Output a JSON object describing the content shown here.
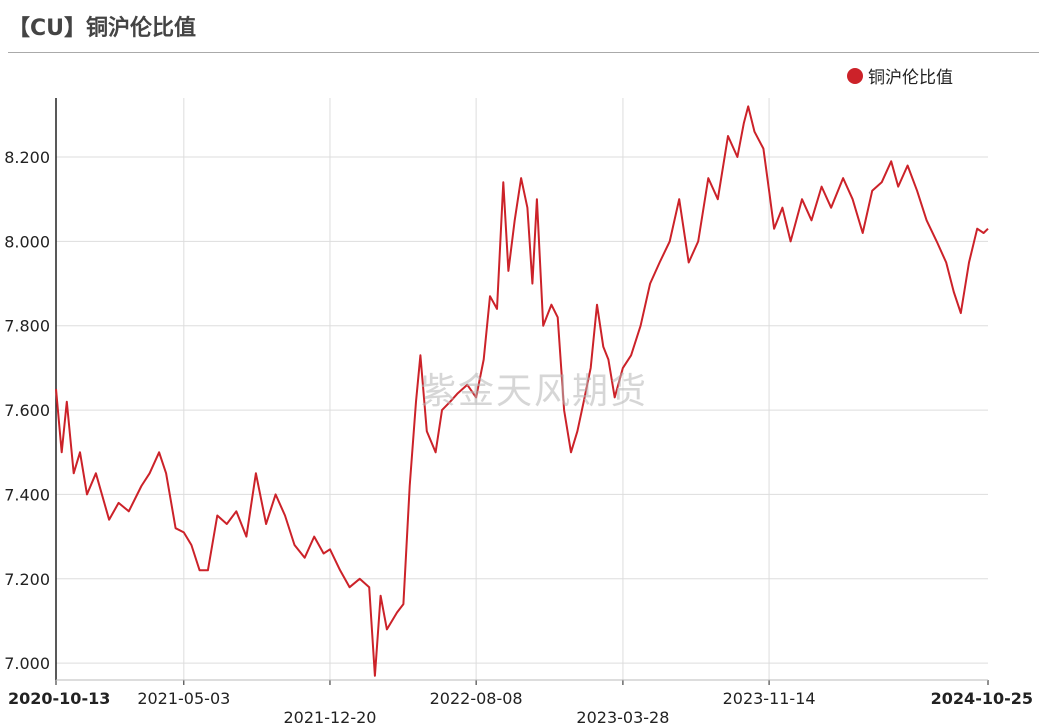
{
  "header": {
    "title": "【CU】铜沪伦比值"
  },
  "watermark": "紫金天风期货",
  "colors": {
    "series": "#cc2229",
    "grid": "#dddddd",
    "axis": "#222222"
  },
  "chart_data": {
    "type": "line",
    "title": "【CU】铜沪伦比值",
    "legend_position": "top-right",
    "grid": true,
    "ylim": [
      6.96,
      8.34
    ],
    "xlim": [
      "2020-10-13",
      "2024-10-25"
    ],
    "yticks": [
      "7.000",
      "7.200",
      "7.400",
      "7.600",
      "7.800",
      "8.000",
      "8.200"
    ],
    "ytick_values": [
      7.0,
      7.2,
      7.4,
      7.6,
      7.8,
      8.0,
      8.2
    ],
    "xticks": [
      {
        "label": "2020-10-13",
        "bold": true,
        "row": 0
      },
      {
        "label": "2021-05-03",
        "bold": false,
        "row": 0
      },
      {
        "label": "2021-12-20",
        "bold": false,
        "row": 1
      },
      {
        "label": "2022-08-08",
        "bold": false,
        "row": 0
      },
      {
        "label": "2023-03-28",
        "bold": false,
        "row": 1
      },
      {
        "label": "2023-11-14",
        "bold": false,
        "row": 0
      },
      {
        "label": "2024-10-25",
        "bold": true,
        "row": 0
      }
    ],
    "series": [
      {
        "name": "铜沪伦比值",
        "points": [
          [
            "2020-10-13",
            7.65
          ],
          [
            "2020-10-22",
            7.5
          ],
          [
            "2020-10-30",
            7.62
          ],
          [
            "2020-11-10",
            7.45
          ],
          [
            "2020-11-20",
            7.5
          ],
          [
            "2020-12-01",
            7.4
          ],
          [
            "2020-12-15",
            7.45
          ],
          [
            "2021-01-05",
            7.34
          ],
          [
            "2021-01-20",
            7.38
          ],
          [
            "2021-02-05",
            7.36
          ],
          [
            "2021-02-25",
            7.42
          ],
          [
            "2021-03-10",
            7.45
          ],
          [
            "2021-03-25",
            7.5
          ],
          [
            "2021-04-05",
            7.45
          ],
          [
            "2021-04-20",
            7.32
          ],
          [
            "2021-05-03",
            7.31
          ],
          [
            "2021-05-15",
            7.28
          ],
          [
            "2021-05-28",
            7.22
          ],
          [
            "2021-06-10",
            7.22
          ],
          [
            "2021-06-25",
            7.35
          ],
          [
            "2021-07-10",
            7.33
          ],
          [
            "2021-07-25",
            7.36
          ],
          [
            "2021-08-10",
            7.3
          ],
          [
            "2021-08-25",
            7.45
          ],
          [
            "2021-09-10",
            7.33
          ],
          [
            "2021-09-25",
            7.4
          ],
          [
            "2021-10-10",
            7.35
          ],
          [
            "2021-10-25",
            7.28
          ],
          [
            "2021-11-10",
            7.25
          ],
          [
            "2021-11-25",
            7.3
          ],
          [
            "2021-12-10",
            7.26
          ],
          [
            "2021-12-20",
            7.27
          ],
          [
            "2022-01-05",
            7.22
          ],
          [
            "2022-01-20",
            7.18
          ],
          [
            "2022-02-05",
            7.2
          ],
          [
            "2022-02-20",
            7.18
          ],
          [
            "2022-03-01",
            6.97
          ],
          [
            "2022-03-10",
            7.16
          ],
          [
            "2022-03-20",
            7.08
          ],
          [
            "2022-04-05",
            7.12
          ],
          [
            "2022-04-15",
            7.14
          ],
          [
            "2022-04-25",
            7.42
          ],
          [
            "2022-05-05",
            7.62
          ],
          [
            "2022-05-12",
            7.73
          ],
          [
            "2022-05-22",
            7.55
          ],
          [
            "2022-06-05",
            7.5
          ],
          [
            "2022-06-15",
            7.6
          ],
          [
            "2022-06-28",
            7.62
          ],
          [
            "2022-07-10",
            7.64
          ],
          [
            "2022-07-25",
            7.66
          ],
          [
            "2022-08-08",
            7.63
          ],
          [
            "2022-08-20",
            7.72
          ],
          [
            "2022-08-30",
            7.87
          ],
          [
            "2022-09-10",
            7.84
          ],
          [
            "2022-09-20",
            8.14
          ],
          [
            "2022-09-28",
            7.93
          ],
          [
            "2022-10-08",
            8.05
          ],
          [
            "2022-10-18",
            8.15
          ],
          [
            "2022-10-28",
            8.08
          ],
          [
            "2022-11-05",
            7.9
          ],
          [
            "2022-11-12",
            8.1
          ],
          [
            "2022-11-22",
            7.8
          ],
          [
            "2022-12-05",
            7.85
          ],
          [
            "2022-12-15",
            7.82
          ],
          [
            "2022-12-25",
            7.6
          ],
          [
            "2023-01-05",
            7.5
          ],
          [
            "2023-01-15",
            7.55
          ],
          [
            "2023-01-25",
            7.62
          ],
          [
            "2023-02-05",
            7.7
          ],
          [
            "2023-02-15",
            7.85
          ],
          [
            "2023-02-25",
            7.75
          ],
          [
            "2023-03-05",
            7.72
          ],
          [
            "2023-03-15",
            7.63
          ],
          [
            "2023-03-28",
            7.7
          ],
          [
            "2023-04-10",
            7.73
          ],
          [
            "2023-04-25",
            7.8
          ],
          [
            "2023-05-10",
            7.9
          ],
          [
            "2023-05-25",
            7.95
          ],
          [
            "2023-06-10",
            8.0
          ],
          [
            "2023-06-25",
            8.1
          ],
          [
            "2023-07-10",
            7.95
          ],
          [
            "2023-07-25",
            8.0
          ],
          [
            "2023-08-10",
            8.15
          ],
          [
            "2023-08-25",
            8.1
          ],
          [
            "2023-09-10",
            8.25
          ],
          [
            "2023-09-25",
            8.2
          ],
          [
            "2023-10-05",
            8.28
          ],
          [
            "2023-10-12",
            8.32
          ],
          [
            "2023-10-22",
            8.26
          ],
          [
            "2023-11-05",
            8.22
          ],
          [
            "2023-11-14",
            8.12
          ],
          [
            "2023-11-22",
            8.03
          ],
          [
            "2023-12-05",
            8.08
          ],
          [
            "2023-12-18",
            8.0
          ],
          [
            "2024-01-05",
            8.1
          ],
          [
            "2024-01-20",
            8.05
          ],
          [
            "2024-02-05",
            8.13
          ],
          [
            "2024-02-20",
            8.08
          ],
          [
            "2024-03-10",
            8.15
          ],
          [
            "2024-03-25",
            8.1
          ],
          [
            "2024-04-10",
            8.02
          ],
          [
            "2024-04-25",
            8.12
          ],
          [
            "2024-05-10",
            8.14
          ],
          [
            "2024-05-25",
            8.19
          ],
          [
            "2024-06-05",
            8.13
          ],
          [
            "2024-06-20",
            8.18
          ],
          [
            "2024-07-05",
            8.12
          ],
          [
            "2024-07-20",
            8.05
          ],
          [
            "2024-08-05",
            8.0
          ],
          [
            "2024-08-20",
            7.95
          ],
          [
            "2024-09-01",
            7.88
          ],
          [
            "2024-09-12",
            7.83
          ],
          [
            "2024-09-25",
            7.95
          ],
          [
            "2024-10-08",
            8.03
          ],
          [
            "2024-10-18",
            8.02
          ],
          [
            "2024-10-25",
            8.03
          ]
        ]
      }
    ]
  }
}
